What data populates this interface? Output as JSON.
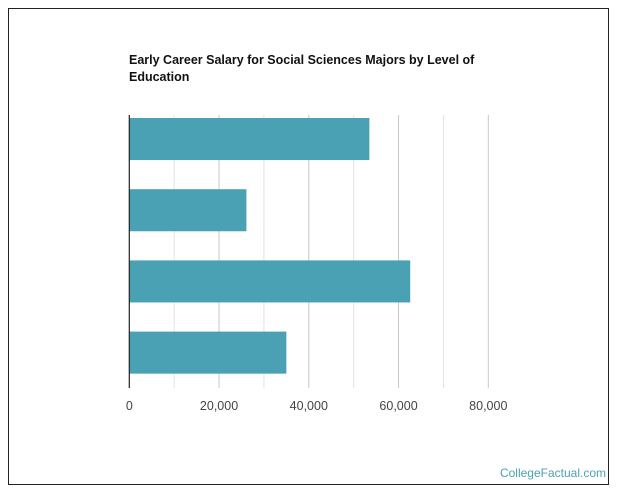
{
  "chart_data": {
    "type": "bar",
    "orientation": "horizontal",
    "title": "Early Career Salary for Social Sciences Majors by Level of Education",
    "categories": [
      "",
      "",
      "",
      ""
    ],
    "values": [
      53500,
      26100,
      62600,
      35000
    ],
    "xlim": [
      0,
      80000
    ],
    "xticks": [
      0,
      20000,
      40000,
      60000,
      80000
    ],
    "xtick_labels": [
      "0",
      "20,000",
      "40,000",
      "60,000",
      "80,000"
    ],
    "minor_gridlines_every": 10000,
    "grid": true,
    "bar_color": "#4aa1b3",
    "xlabel": "",
    "ylabel": ""
  },
  "credit": "CollegeFactual.com"
}
